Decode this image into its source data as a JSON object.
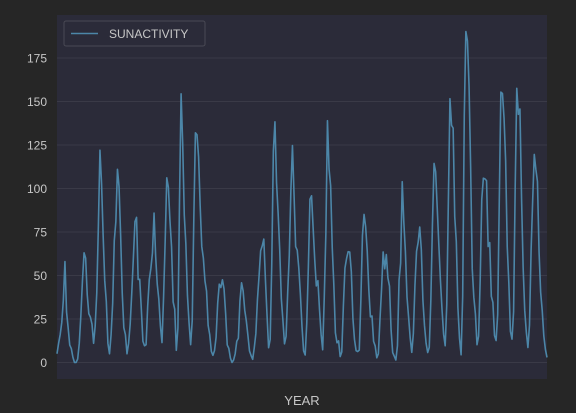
{
  "chart_data": {
    "type": "line",
    "title": "",
    "xlabel": "YEAR",
    "ylabel": "",
    "x": [
      1700,
      1701,
      1702,
      1703,
      1704,
      1705,
      1706,
      1707,
      1708,
      1709,
      1710,
      1711,
      1712,
      1713,
      1714,
      1715,
      1716,
      1717,
      1718,
      1719,
      1720,
      1721,
      1722,
      1723,
      1724,
      1725,
      1726,
      1727,
      1728,
      1729,
      1730,
      1731,
      1732,
      1733,
      1734,
      1735,
      1736,
      1737,
      1738,
      1739,
      1740,
      1741,
      1742,
      1743,
      1744,
      1745,
      1746,
      1747,
      1748,
      1749,
      1750,
      1751,
      1752,
      1753,
      1754,
      1755,
      1756,
      1757,
      1758,
      1759,
      1760,
      1761,
      1762,
      1763,
      1764,
      1765,
      1766,
      1767,
      1768,
      1769,
      1770,
      1771,
      1772,
      1773,
      1774,
      1775,
      1776,
      1777,
      1778,
      1779,
      1780,
      1781,
      1782,
      1783,
      1784,
      1785,
      1786,
      1787,
      1788,
      1789,
      1790,
      1791,
      1792,
      1793,
      1794,
      1795,
      1796,
      1797,
      1798,
      1799,
      1800,
      1801,
      1802,
      1803,
      1804,
      1805,
      1806,
      1807,
      1808,
      1809,
      1810,
      1811,
      1812,
      1813,
      1814,
      1815,
      1816,
      1817,
      1818,
      1819,
      1820,
      1821,
      1822,
      1823,
      1824,
      1825,
      1826,
      1827,
      1828,
      1829,
      1830,
      1831,
      1832,
      1833,
      1834,
      1835,
      1836,
      1837,
      1838,
      1839,
      1840,
      1841,
      1842,
      1843,
      1844,
      1845,
      1846,
      1847,
      1848,
      1849,
      1850,
      1851,
      1852,
      1853,
      1854,
      1855,
      1856,
      1857,
      1858,
      1859,
      1860,
      1861,
      1862,
      1863,
      1864,
      1865,
      1866,
      1867,
      1868,
      1869,
      1870,
      1871,
      1872,
      1873,
      1874,
      1875,
      1876,
      1877,
      1878,
      1879,
      1880,
      1881,
      1882,
      1883,
      1884,
      1885,
      1886,
      1887,
      1888,
      1889,
      1890,
      1891,
      1892,
      1893,
      1894,
      1895,
      1896,
      1897,
      1898,
      1899,
      1900,
      1901,
      1902,
      1903,
      1904,
      1905,
      1906,
      1907,
      1908,
      1909,
      1910,
      1911,
      1912,
      1913,
      1914,
      1915,
      1916,
      1917,
      1918,
      1919,
      1920,
      1921,
      1922,
      1923,
      1924,
      1925,
      1926,
      1927,
      1928,
      1929,
      1930,
      1931,
      1932,
      1933,
      1934,
      1935,
      1936,
      1937,
      1938,
      1939,
      1940,
      1941,
      1942,
      1943,
      1944,
      1945,
      1946,
      1947,
      1948,
      1949,
      1950,
      1951,
      1952,
      1953,
      1954,
      1955,
      1956,
      1957,
      1958,
      1959,
      1960,
      1961,
      1962,
      1963,
      1964,
      1965,
      1966,
      1967,
      1968,
      1969,
      1970,
      1971,
      1972,
      1973,
      1974,
      1975,
      1976,
      1977,
      1978,
      1979,
      1980,
      1981,
      1982,
      1983,
      1984,
      1985,
      1986,
      1987,
      1988,
      1989,
      1990,
      1991,
      1992,
      1993,
      1994,
      1995,
      1996,
      1997,
      1998,
      1999,
      2000,
      2001,
      2002,
      2003,
      2004,
      2005,
      2006,
      2007,
      2008
    ],
    "series": [
      {
        "name": "SUNACTIVITY",
        "color": "#4c86a8",
        "values": [
          5,
          11,
          16,
          23,
          36,
          58,
          29,
          20,
          10,
          8,
          3,
          0,
          0,
          2,
          11,
          27,
          47,
          63,
          60,
          39,
          28,
          26,
          22,
          11,
          21,
          40,
          78,
          122,
          103,
          73,
          47,
          35,
          11,
          5,
          16,
          34,
          70,
          81,
          111,
          101,
          73,
          40,
          20,
          16,
          5,
          11,
          22,
          40,
          60,
          80.9,
          83.4,
          47.7,
          47.8,
          30.7,
          12.2,
          9.6,
          10.2,
          32.4,
          47.6,
          54,
          62.9,
          85.9,
          61.2,
          45.1,
          36.4,
          20.9,
          11.4,
          37.8,
          69.8,
          106.1,
          100.8,
          81.6,
          66.5,
          34.8,
          30.6,
          7,
          19.8,
          92.5,
          154.4,
          125.9,
          84.8,
          68.1,
          38.5,
          22.8,
          10.2,
          24.1,
          82.9,
          132,
          130.9,
          118.1,
          89.9,
          66.6,
          60,
          46.9,
          41,
          21.3,
          16,
          6.4,
          4.1,
          6.8,
          14.5,
          34,
          45,
          43.1,
          47.5,
          42.2,
          28.1,
          10.1,
          8.1,
          2.5,
          0,
          1.4,
          5,
          12.2,
          13.9,
          35.4,
          45.8,
          41.1,
          30.1,
          23.9,
          15.6,
          6.6,
          4,
          1.8,
          8.5,
          16.6,
          36.3,
          49.6,
          64.2,
          67,
          70.9,
          47.8,
          27.5,
          8.5,
          13.2,
          56.9,
          121.5,
          138.3,
          103.2,
          85.7,
          64.6,
          36.7,
          24.2,
          10.7,
          15,
          40.1,
          61.5,
          98.5,
          124.7,
          96.3,
          66.6,
          64.5,
          54.1,
          39,
          20.6,
          6.7,
          4.3,
          22.7,
          54.8,
          93.8,
          95.8,
          77.2,
          59.1,
          44,
          47,
          30.5,
          16.3,
          7.3,
          37.6,
          74,
          139,
          111.2,
          101.6,
          66.2,
          44.7,
          17,
          11.3,
          12.4,
          3.4,
          6,
          32.3,
          54.3,
          59.7,
          63.7,
          63.5,
          52.2,
          25.4,
          13.1,
          6.8,
          6.3,
          7.1,
          35.6,
          73,
          85.1,
          78,
          64,
          41.8,
          26.2,
          26.7,
          12.1,
          9.5,
          2.7,
          5,
          24.4,
          42,
          63.5,
          53.8,
          62,
          48.5,
          43.9,
          18.6,
          5.7,
          3.6,
          1.4,
          9.6,
          47.4,
          57.1,
          103.9,
          80.6,
          63.6,
          37.6,
          26.1,
          14.2,
          5.8,
          16.7,
          44.3,
          63.9,
          69,
          77.8,
          64.9,
          35.7,
          21.2,
          11.1,
          5.7,
          8.7,
          36.1,
          79.7,
          114.4,
          109.6,
          88.8,
          67.8,
          47.5,
          30.6,
          16.3,
          9.6,
          33.2,
          92.6,
          151.6,
          136.3,
          134.7,
          83.9,
          69.4,
          31.5,
          13.9,
          4.4,
          38,
          141.7,
          190.2,
          184.8,
          159,
          112.3,
          53.9,
          37.5,
          27.9,
          10.2,
          15.1,
          47,
          93.8,
          105.9,
          105.5,
          104.5,
          66.6,
          68.9,
          38,
          34.5,
          15.5,
          12.6,
          27.5,
          92.5,
          155.4,
          154.6,
          140.4,
          115.9,
          66.6,
          45.9,
          17.9,
          13.4,
          29.2,
          100.2,
          157.6,
          142.6,
          145.7,
          94.3,
          54.6,
          29.9,
          17.5,
          8.6,
          21.5,
          64.3,
          93.3,
          119.6,
          111,
          104,
          63.7,
          40.4,
          29.8,
          15.2,
          7.5,
          2.9
        ]
      }
    ],
    "yticks": [
      0,
      25,
      50,
      75,
      100,
      125,
      150,
      175
    ],
    "ylim": [
      -9.5,
      199.7
    ],
    "xlim": [
      1700,
      2008
    ],
    "grid": true,
    "legend": "top-left"
  },
  "colors": {
    "figure_bg": "#262626",
    "axes_bg": "#2b2b39",
    "grid": "#3a3a47",
    "text": "#c7c7c7",
    "line": "#4c86a8"
  }
}
